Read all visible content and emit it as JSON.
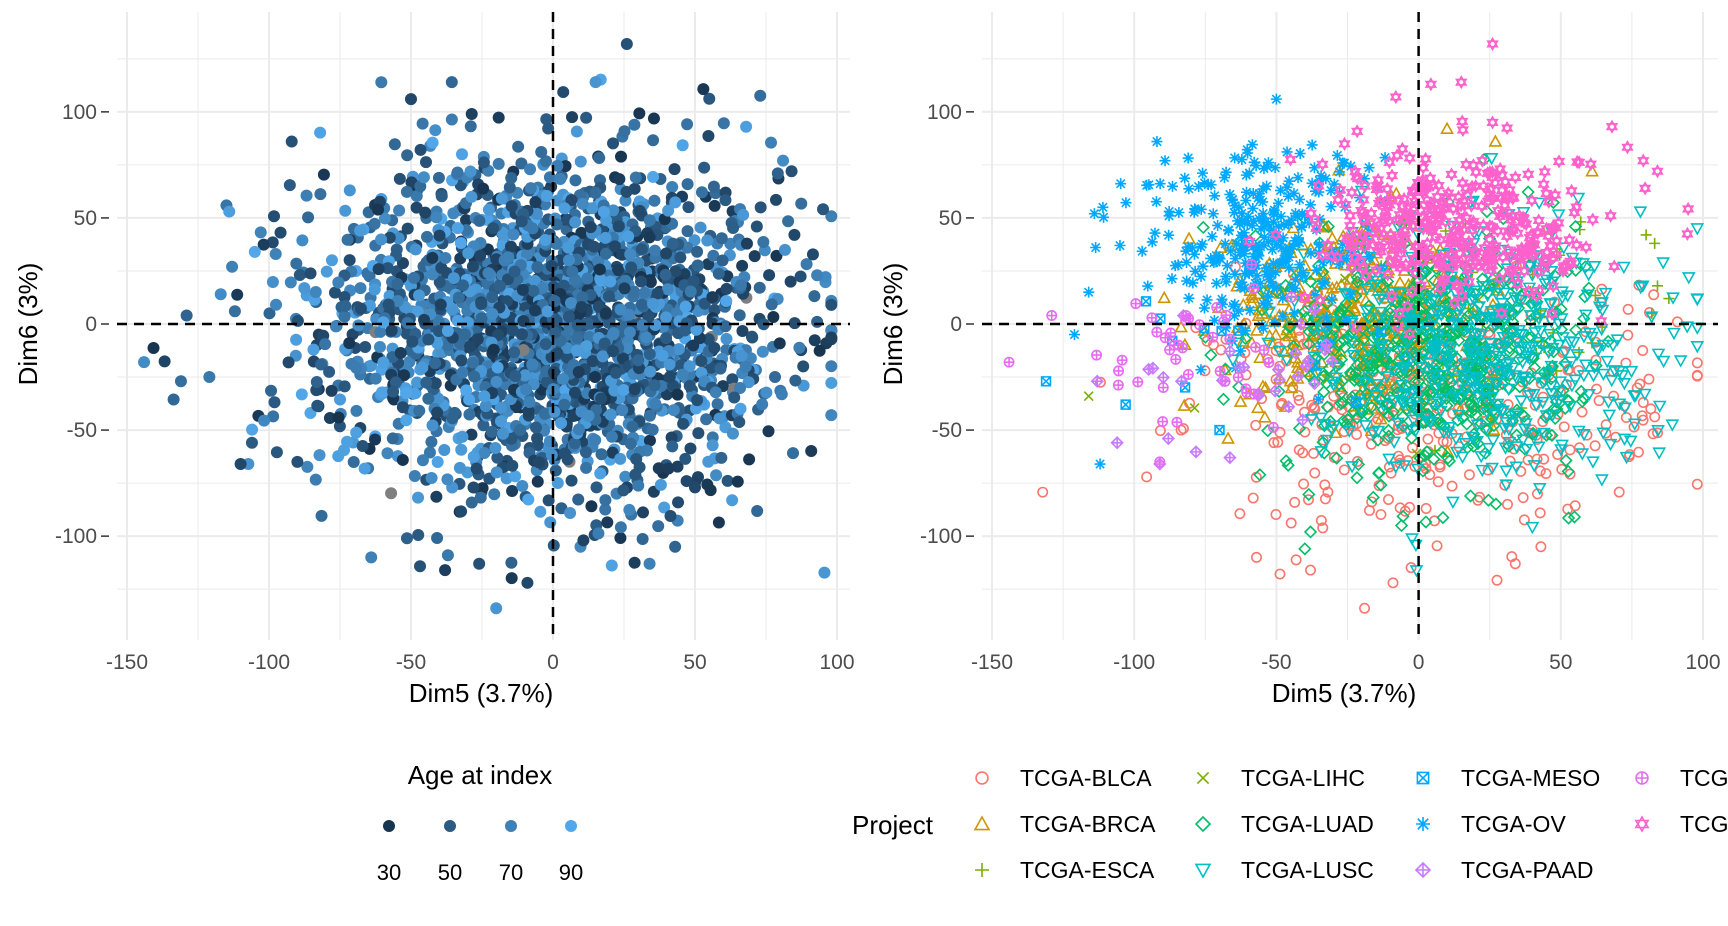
{
  "colors": {
    "grid": "#ebebeb",
    "tick_label": "#4d4d4d",
    "age_low": "#132B43",
    "age_high": "#56B1F7",
    "na_gray": "#7f7f7f"
  },
  "chart_data": [
    {
      "type": "scatter",
      "panel": "left",
      "xlabel": "Dim5 (3.7%)",
      "ylabel": "Dim6 (3%)",
      "xlim": [
        -150,
        100
      ],
      "ylim": [
        -140,
        140
      ],
      "x_ticks": [
        "-150",
        "-100",
        "-50",
        "0",
        "50",
        "100"
      ],
      "y_ticks": [
        "-100",
        "-50",
        "0",
        "50",
        "100"
      ],
      "reference_lines": {
        "x": 0,
        "y": 0,
        "style": "dashed"
      },
      "grid": true,
      "color_by": "Age at index",
      "legend": {
        "title": "Age at index",
        "placement": "bottom",
        "labels": [
          "30",
          "50",
          "70",
          "90"
        ],
        "values": [
          30,
          50,
          70,
          90
        ]
      },
      "point_count_estimate": 2400,
      "cloud": {
        "x_mean": 0,
        "x_sd": 40,
        "y_mean": 0,
        "y_sd": 40
      },
      "outliers": [
        {
          "x": -144,
          "y": -18,
          "age": 75
        },
        {
          "x": -131,
          "y": -27,
          "age": 60
        },
        {
          "x": -129,
          "y": 4,
          "age": 55
        },
        {
          "x": -121,
          "y": -25,
          "age": 65
        },
        {
          "x": -117,
          "y": 14,
          "age": 75
        },
        {
          "x": -114,
          "y": 53,
          "age": 85
        },
        {
          "x": -113,
          "y": 27,
          "age": 70
        },
        {
          "x": -110,
          "y": -66,
          "age": 40
        },
        {
          "x": -106,
          "y": -56,
          "age": 50
        },
        {
          "x": -105,
          "y": 34,
          "age": 90
        },
        {
          "x": -92,
          "y": 86,
          "age": 45
        },
        {
          "x": -90,
          "y": -65,
          "age": 45
        },
        {
          "x": -64,
          "y": -110,
          "age": 70
        },
        {
          "x": -50,
          "y": 106,
          "age": 40
        },
        {
          "x": -38,
          "y": -116,
          "age": 35
        },
        {
          "x": -37,
          "y": -109,
          "age": 65
        },
        {
          "x": -26,
          "y": -113,
          "age": 45
        },
        {
          "x": -20,
          "y": -134,
          "age": 80
        },
        {
          "x": -9,
          "y": -122,
          "age": 40
        },
        {
          "x": 15,
          "y": 114,
          "age": 80
        },
        {
          "x": 26,
          "y": 132,
          "age": 45
        },
        {
          "x": 34,
          "y": -113,
          "age": 70
        },
        {
          "x": 43,
          "y": -105,
          "age": 55
        },
        {
          "x": 50,
          "y": -77,
          "age": 40
        },
        {
          "x": 68,
          "y": 93,
          "age": 85
        },
        {
          "x": 81,
          "y": 77,
          "age": 75
        },
        {
          "x": 84,
          "y": 72,
          "age": 45
        },
        {
          "x": 85,
          "y": 42,
          "age": 40
        },
        {
          "x": 93,
          "y": 23,
          "age": 70
        },
        {
          "x": 93,
          "y": 1,
          "age": 55
        }
      ]
    },
    {
      "type": "scatter",
      "panel": "right",
      "xlabel": "Dim5 (3.7%)",
      "ylabel": "Dim6 (3%)",
      "xlim": [
        -150,
        100
      ],
      "ylim": [
        -140,
        140
      ],
      "x_ticks": [
        "-150",
        "-100",
        "-50",
        "0",
        "50",
        "100"
      ],
      "y_ticks": [
        "-100",
        "-50",
        "0",
        "50",
        "100"
      ],
      "reference_lines": {
        "x": 0,
        "y": 0,
        "style": "dashed"
      },
      "grid": true,
      "color_by": "Project",
      "legend": {
        "title": "Project",
        "placement": "bottom",
        "columns": 4,
        "visible_labels": [
          "TCGA-BLCA",
          "TCGA-BRCA",
          "TCGA-ESCA",
          "TCGA-LIHC",
          "TCGA-LUAD",
          "TCGA-LUSC",
          "TCGA-MESO",
          "TCGA-OV",
          "TCGA-PAAD",
          "TCGA-",
          "TCGA-"
        ]
      },
      "series": [
        {
          "name": "TCGA-BLCA",
          "label": "TCGA-BLCA",
          "color": "#F8766D",
          "shape": "circle",
          "count": 420,
          "x_mean": 5,
          "x_sd": 38,
          "y_mean": -35,
          "y_sd": 30,
          "outliers": [
            {
              "x": -57,
              "y": -110
            },
            {
              "x": -38,
              "y": -116
            },
            {
              "x": -19,
              "y": -134
            },
            {
              "x": -9,
              "y": -122
            },
            {
              "x": 34,
              "y": -113
            },
            {
              "x": 43,
              "y": -105
            },
            {
              "x": 79,
              "y": -37
            },
            {
              "x": 81,
              "y": -26
            },
            {
              "x": 91,
              "y": 1
            }
          ]
        },
        {
          "name": "TCGA-BRCA",
          "label": "TCGA-BRCA",
          "color": "#CD9600",
          "shape": "triangle",
          "count": 320,
          "x_mean": -25,
          "x_sd": 22,
          "y_mean": 5,
          "y_sd": 22,
          "outliers": [
            {
              "x": -67,
              "y": -54
            },
            {
              "x": 10,
              "y": 92
            },
            {
              "x": 27,
              "y": 86
            },
            {
              "x": 61,
              "y": 72
            }
          ]
        },
        {
          "name": "TCGA-ESCA",
          "label": "TCGA-ESCA",
          "color": "#7CAE00",
          "shape": "plus",
          "count": 60,
          "x_mean": 30,
          "x_sd": 28,
          "y_mean": 10,
          "y_sd": 25,
          "outliers": [
            {
              "x": 80,
              "y": 42
            },
            {
              "x": 83,
              "y": 38
            },
            {
              "x": 84,
              "y": 18
            },
            {
              "x": 88,
              "y": 12
            },
            {
              "x": 82,
              "y": 5
            }
          ]
        },
        {
          "name": "TCGA-LIHC",
          "label": "TCGA-LIHC",
          "color": "#7CAE00",
          "shape": "cross",
          "count": 12,
          "x_mean": -20,
          "x_sd": 30,
          "y_mean": -5,
          "y_sd": 20,
          "outliers": [
            {
              "x": -116,
              "y": -34
            }
          ]
        },
        {
          "name": "TCGA-LUAD",
          "label": "TCGA-LUAD",
          "color": "#00BE67",
          "shape": "diamond",
          "count": 560,
          "x_mean": 5,
          "x_sd": 25,
          "y_mean": -15,
          "y_sd": 28,
          "outliers": [
            {
              "x": -40,
              "y": -106
            },
            {
              "x": -38,
              "y": -98
            },
            {
              "x": -6,
              "y": -95
            }
          ]
        },
        {
          "name": "TCGA-LUSC",
          "label": "TCGA-LUSC",
          "color": "#00BFC4",
          "shape": "down-triangle",
          "count": 520,
          "x_mean": 20,
          "x_sd": 30,
          "y_mean": -10,
          "y_sd": 30,
          "outliers": [
            {
              "x": 78,
              "y": 53
            },
            {
              "x": 86,
              "y": 29
            },
            {
              "x": 95,
              "y": 22
            },
            {
              "x": 76,
              "y": -47
            }
          ]
        },
        {
          "name": "TCGA-MESO",
          "label": "TCGA-MESO",
          "color": "#00A9FF",
          "shape": "square-cross",
          "count": 10,
          "x_mean": -60,
          "x_sd": 25,
          "y_mean": -10,
          "y_sd": 15,
          "outliers": [
            {
              "x": -131,
              "y": -27
            },
            {
              "x": -103,
              "y": -38
            },
            {
              "x": -70,
              "y": -50
            }
          ]
        },
        {
          "name": "TCGA-OV",
          "label": "TCGA-OV",
          "color": "#00A9FF",
          "shape": "asterisk",
          "count": 300,
          "x_mean": -55,
          "x_sd": 20,
          "y_mean": 40,
          "y_sd": 22,
          "outliers": [
            {
              "x": -116,
              "y": 15
            },
            {
              "x": -114,
              "y": 52
            },
            {
              "x": -111,
              "y": 55
            },
            {
              "x": -105,
              "y": 37
            },
            {
              "x": -92,
              "y": 86
            },
            {
              "x": -50,
              "y": 106
            },
            {
              "x": -112,
              "y": -66
            },
            {
              "x": -121,
              "y": -5
            }
          ]
        },
        {
          "name": "TCGA-PAAD",
          "label": "TCGA-PAAD",
          "color": "#C77CFF",
          "shape": "diamond-plus",
          "count": 28,
          "x_mean": -60,
          "x_sd": 20,
          "y_mean": -25,
          "y_sd": 18,
          "outliers": [
            {
              "x": -106,
              "y": -56
            },
            {
              "x": -113,
              "y": -27
            },
            {
              "x": -88,
              "y": -54
            },
            {
              "x": -91,
              "y": -66
            }
          ]
        },
        {
          "name": "TCGA-(magenta circle-plus)",
          "label": "TCGA-",
          "color": "#E76BF3",
          "shape": "circle-plus",
          "count": 40,
          "x_mean": -80,
          "x_sd": 15,
          "y_mean": -15,
          "y_sd": 18,
          "outliers": [
            {
              "x": -144,
              "y": -18
            },
            {
              "x": -129,
              "y": 4
            },
            {
              "x": -91,
              "y": -65
            },
            {
              "x": -90,
              "y": -46
            }
          ]
        },
        {
          "name": "TCGA-(pink star)",
          "label": "TCGA-",
          "color": "#FF61CC",
          "shape": "star",
          "count": 380,
          "x_mean": 15,
          "x_sd": 25,
          "y_mean": 45,
          "y_sd": 18,
          "outliers": [
            {
              "x": 26,
              "y": 132
            },
            {
              "x": 15,
              "y": 114
            },
            {
              "x": -8,
              "y": 107
            },
            {
              "x": 26,
              "y": 95
            },
            {
              "x": 68,
              "y": 93
            },
            {
              "x": 79,
              "y": 77
            },
            {
              "x": 84,
              "y": 72
            }
          ]
        }
      ]
    }
  ]
}
